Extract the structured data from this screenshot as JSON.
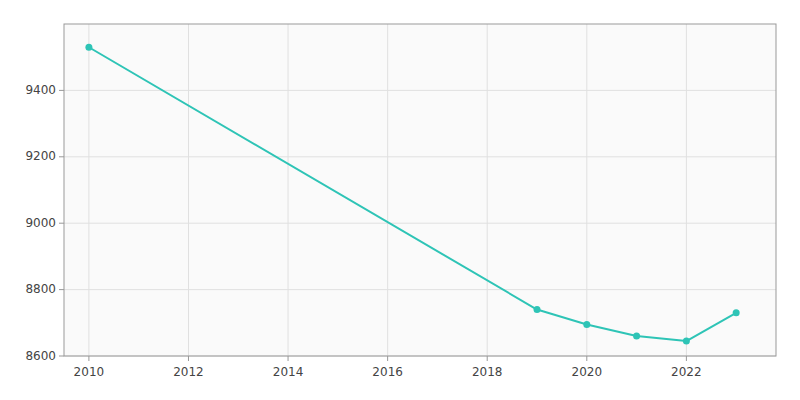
{
  "chart_data": {
    "type": "line",
    "x": [
      2010,
      2019,
      2020,
      2021,
      2022,
      2023
    ],
    "values": [
      9530,
      8740,
      8695,
      8660,
      8645,
      8730
    ],
    "xlim": [
      2009.5,
      2023.8
    ],
    "ylim": [
      8600,
      9600
    ],
    "xticks": [
      2010,
      2012,
      2014,
      2016,
      2018,
      2020,
      2022
    ],
    "yticks": [
      8600,
      8800,
      9000,
      9200,
      9400
    ],
    "grid": true,
    "color": "#2ec4b6",
    "marker": "circle"
  }
}
